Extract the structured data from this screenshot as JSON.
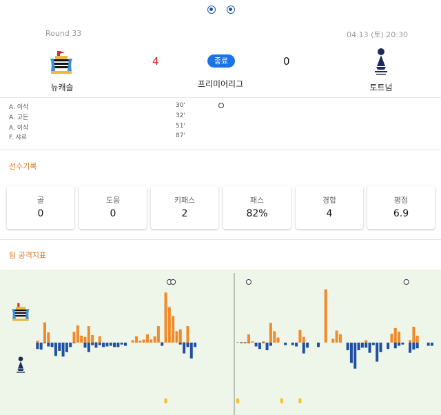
{
  "match": {
    "round": "Round 33",
    "datetime": "04.13 (토) 20:30",
    "status": "종료",
    "league": "프리미어리그",
    "home": {
      "name": "뉴캐슬",
      "score": "4",
      "crest_icon": "newcastle-crest-icon",
      "color": "#f08a2a"
    },
    "away": {
      "name": "토트넘",
      "score": "0",
      "crest_icon": "tottenham-crest-icon",
      "color": "#1f4fa3"
    }
  },
  "events": [
    {
      "player": "A. 이삭",
      "minute": "30'"
    },
    {
      "player": "A. 고든",
      "minute": "32'"
    },
    {
      "player": "A. 이삭",
      "minute": "51'"
    },
    {
      "player": "F. 샤르",
      "minute": "87'"
    }
  ],
  "player_record": {
    "title": "선수기록",
    "stats": [
      {
        "label": "골",
        "value": "0"
      },
      {
        "label": "도움",
        "value": "0"
      },
      {
        "label": "키패스",
        "value": "2"
      },
      {
        "label": "패스",
        "value": "82%"
      },
      {
        "label": "경합",
        "value": "4"
      },
      {
        "label": "평점",
        "value": "6.9"
      }
    ]
  },
  "attack_index": {
    "title": "팀 공격지표",
    "background": "#eef6ea",
    "home_color": "#f08a2a",
    "away_color": "#1f4fa3",
    "card_color": "#f5c02a"
  },
  "chart_data": {
    "type": "bar",
    "halves": [
      {
        "home": [
          0,
          3,
          0,
          32,
          16,
          0,
          0,
          0,
          0,
          0,
          0,
          17,
          27,
          11,
          9,
          26,
          12,
          1,
          10,
          0,
          0,
          0,
          0,
          0,
          0,
          0,
          0,
          4,
          10,
          3,
          5,
          13,
          5,
          10,
          26,
          1,
          79,
          56,
          42,
          18,
          21,
          1,
          26,
          0,
          0,
          0,
          0
        ],
        "away": [
          0,
          -10,
          -11,
          -1,
          -6,
          -7,
          -21,
          -13,
          -22,
          -15,
          -7,
          -1,
          0,
          0,
          -8,
          -15,
          -4,
          -8,
          -4,
          -7,
          -6,
          -5,
          -7,
          -7,
          -3,
          -5,
          0,
          0,
          0,
          0,
          0,
          0,
          0,
          0,
          0,
          -5,
          0,
          0,
          0,
          0,
          -3,
          -17,
          -7,
          -25,
          -7,
          0,
          0
        ],
        "goals": [
          37,
          38
        ],
        "cards": [
          36
        ]
      },
      {
        "home": [
          1,
          1,
          1,
          13,
          2,
          0,
          0,
          2,
          0,
          31,
          18,
          8,
          0,
          0,
          0,
          0,
          0,
          20,
          9,
          0,
          0,
          0,
          0,
          0,
          84,
          0,
          6,
          19,
          13,
          0,
          0,
          0,
          0,
          0,
          0,
          4,
          0,
          0,
          0,
          0,
          0,
          0,
          14,
          23,
          17,
          0,
          0,
          4,
          25,
          11,
          0,
          0,
          0,
          0
        ],
        "away": [
          0,
          -1,
          -1,
          -1,
          0,
          -6,
          -10,
          -1,
          -12,
          -5,
          0,
          0,
          0,
          -4,
          0,
          -4,
          -6,
          0,
          -17,
          -8,
          0,
          0,
          -7,
          0,
          0,
          0,
          0,
          0,
          0,
          0,
          -12,
          -32,
          -41,
          -12,
          -8,
          -8,
          -16,
          -4,
          -30,
          -15,
          0,
          -10,
          0,
          -9,
          -5,
          -3,
          0,
          -16,
          -11,
          -9,
          0,
          0,
          -5,
          -5
        ],
        "goals": [
          3,
          46
        ],
        "cards": [
          0,
          12,
          17
        ]
      }
    ]
  }
}
